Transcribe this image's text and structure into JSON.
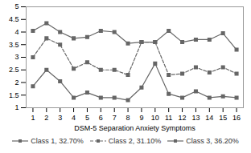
{
  "chart_data": {
    "type": "line",
    "xlabel": "DSM-5 Separation Anxiety Symptoms",
    "x": [
      1,
      2,
      3,
      4,
      5,
      6,
      7,
      8,
      9,
      10,
      11,
      12,
      13,
      14,
      15,
      16
    ],
    "series": [
      {
        "name": "Class 1, 32.70%",
        "color": "#666666",
        "line_style": "solid",
        "values": [
          4.05,
          4.35,
          4.0,
          3.75,
          3.8,
          4.05,
          4.0,
          3.55,
          3.6,
          3.6,
          4.05,
          3.6,
          3.7,
          3.7,
          3.95,
          3.3
        ]
      },
      {
        "name": "Class 2, 31.10%",
        "color": "#666666",
        "line_style": "dashed",
        "values": [
          3.0,
          3.75,
          3.5,
          2.55,
          2.8,
          2.5,
          2.5,
          2.3,
          3.6,
          3.6,
          2.3,
          2.35,
          2.6,
          2.4,
          2.6,
          2.35
        ]
      },
      {
        "name": "Class 3, 36.20%",
        "color": "#666666",
        "line_style": "solid",
        "values": [
          1.85,
          2.5,
          2.05,
          1.4,
          1.6,
          1.4,
          1.4,
          1.3,
          1.8,
          2.75,
          1.55,
          1.4,
          1.65,
          1.4,
          1.45,
          1.4
        ]
      }
    ],
    "marker": "square",
    "xlim": [
      0.5,
      16.5
    ],
    "xticks": [
      1,
      2,
      3,
      4,
      5,
      6,
      7,
      8,
      9,
      10,
      11,
      12,
      13,
      14,
      15,
      16
    ],
    "ylim": [
      1,
      5
    ],
    "yticks": [
      1,
      1.5,
      2,
      2.5,
      3,
      3.5,
      4,
      4.5,
      5
    ],
    "grid": false,
    "legend": "bottom"
  }
}
